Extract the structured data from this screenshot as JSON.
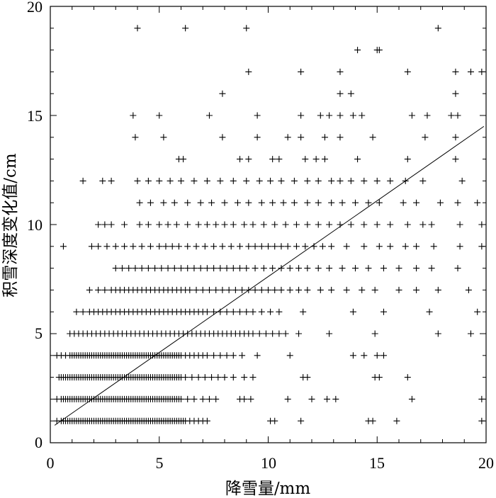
{
  "chart_data": {
    "type": "scatter",
    "title": "",
    "xlabel": "降雪量/mm",
    "ylabel": "积雪深度变化值/cm",
    "xlim": [
      0,
      20
    ],
    "ylim": [
      0,
      20
    ],
    "x_ticks": [
      "0",
      "5",
      "10",
      "15",
      "20"
    ],
    "y_ticks": [
      "0",
      "5",
      "10",
      "15",
      "20"
    ],
    "grid": false,
    "marker": "+",
    "trend_line": {
      "x": [
        0.2,
        19.9
      ],
      "y": [
        0.8,
        14.5
      ]
    },
    "points_by_y": [
      {
        "y": 1,
        "x": [
          0.3,
          0.5,
          0.6,
          0.7,
          0.8,
          0.9,
          1.0,
          1.1,
          1.2,
          1.3,
          1.4,
          1.5,
          1.6,
          1.7,
          1.8,
          1.9,
          2.0,
          2.1,
          2.2,
          2.3,
          2.4,
          2.5,
          2.6,
          2.7,
          2.8,
          2.9,
          3.0,
          3.1,
          3.2,
          3.3,
          3.4,
          3.5,
          3.6,
          3.7,
          3.8,
          3.9,
          4.0,
          4.1,
          4.2,
          4.3,
          4.4,
          4.5,
          4.6,
          4.7,
          4.8,
          4.9,
          5.0,
          5.1,
          5.2,
          5.3,
          5.4,
          5.5,
          5.6,
          5.7,
          5.8,
          5.9,
          6.0,
          6.1,
          6.2,
          6.4,
          6.6,
          6.8,
          7.0,
          7.2,
          10.1,
          10.3,
          11.5,
          14.6,
          14.8,
          15.9,
          19.8
        ]
      },
      {
        "y": 2,
        "x": [
          0.3,
          0.5,
          0.6,
          0.7,
          0.8,
          0.9,
          1.0,
          1.1,
          1.2,
          1.3,
          1.4,
          1.5,
          1.6,
          1.7,
          1.8,
          1.9,
          2.0,
          2.1,
          2.2,
          2.3,
          2.4,
          2.5,
          2.6,
          2.7,
          2.8,
          2.9,
          3.0,
          3.1,
          3.2,
          3.3,
          3.4,
          3.5,
          3.6,
          3.7,
          3.8,
          3.9,
          4.0,
          4.1,
          4.2,
          4.3,
          4.4,
          4.5,
          4.6,
          4.7,
          4.8,
          4.9,
          5.0,
          5.1,
          5.2,
          5.3,
          5.4,
          5.5,
          5.6,
          5.7,
          5.8,
          5.9,
          6.0,
          6.3,
          6.6,
          7.0,
          7.3,
          7.6,
          8.7,
          8.9,
          9.2,
          10.9,
          12.0,
          12.7,
          13.1,
          16.6,
          19.8
        ]
      },
      {
        "y": 3,
        "x": [
          0.4,
          0.5,
          0.6,
          0.7,
          0.8,
          0.9,
          1.0,
          1.1,
          1.2,
          1.3,
          1.4,
          1.5,
          1.6,
          1.7,
          1.8,
          1.9,
          2.0,
          2.1,
          2.2,
          2.3,
          2.4,
          2.5,
          2.6,
          2.7,
          2.8,
          2.9,
          3.0,
          3.1,
          3.2,
          3.3,
          3.4,
          3.5,
          3.6,
          3.7,
          3.8,
          3.9,
          4.0,
          4.1,
          4.2,
          4.3,
          4.4,
          4.5,
          4.6,
          4.7,
          4.8,
          4.9,
          5.0,
          5.1,
          5.2,
          5.3,
          5.4,
          5.5,
          5.6,
          5.7,
          5.8,
          5.9,
          6.0,
          6.2,
          6.5,
          6.8,
          7.1,
          7.4,
          7.7,
          8.0,
          8.4,
          8.9,
          9.3,
          11.6,
          11.8,
          14.9,
          15.1,
          16.4
        ]
      },
      {
        "y": 4,
        "x": [
          0.3,
          0.5,
          0.7,
          0.9,
          1.0,
          1.1,
          1.2,
          1.3,
          1.4,
          1.5,
          1.6,
          1.7,
          1.8,
          1.9,
          2.0,
          2.1,
          2.2,
          2.3,
          2.4,
          2.5,
          2.6,
          2.7,
          2.8,
          2.9,
          3.0,
          3.1,
          3.2,
          3.3,
          3.4,
          3.5,
          3.6,
          3.7,
          3.8,
          3.9,
          4.0,
          4.1,
          4.2,
          4.3,
          4.4,
          4.5,
          4.6,
          4.7,
          4.8,
          4.9,
          5.0,
          5.1,
          5.2,
          5.3,
          5.4,
          5.5,
          5.6,
          5.7,
          5.8,
          5.9,
          6.0,
          6.2,
          6.4,
          6.6,
          6.8,
          7.0,
          7.2,
          7.5,
          7.8,
          8.1,
          8.4,
          8.8,
          9.5,
          11.0,
          13.9,
          14.4,
          15.0,
          15.3
        ]
      },
      {
        "y": 5,
        "x": [
          0.9,
          1.1,
          1.3,
          1.5,
          1.7,
          1.9,
          2.1,
          2.3,
          2.5,
          2.7,
          2.9,
          3.1,
          3.3,
          3.5,
          3.7,
          3.9,
          4.1,
          4.3,
          4.5,
          4.7,
          4.9,
          5.1,
          5.3,
          5.5,
          5.7,
          5.9,
          6.1,
          6.3,
          6.5,
          6.7,
          6.9,
          7.1,
          7.3,
          7.5,
          7.7,
          7.9,
          8.1,
          8.3,
          8.5,
          8.7,
          8.9,
          9.1,
          9.3,
          9.6,
          9.9,
          10.2,
          10.5,
          10.8,
          11.4,
          12.8,
          14.9,
          17.8,
          19.3
        ]
      },
      {
        "y": 6,
        "x": [
          1.2,
          1.5,
          1.8,
          2.0,
          2.2,
          2.4,
          2.6,
          2.8,
          3.0,
          3.2,
          3.4,
          3.6,
          3.8,
          4.0,
          4.2,
          4.4,
          4.6,
          4.8,
          5.0,
          5.2,
          5.4,
          5.6,
          5.8,
          6.0,
          6.2,
          6.4,
          6.6,
          6.8,
          7.0,
          7.2,
          7.5,
          7.8,
          8.1,
          8.4,
          8.7,
          9.0,
          9.3,
          9.7,
          10.1,
          10.5,
          11.6,
          13.9,
          15.3,
          17.4,
          19.6
        ]
      },
      {
        "y": 7,
        "x": [
          1.8,
          2.2,
          2.5,
          2.8,
          3.0,
          3.2,
          3.4,
          3.6,
          3.8,
          4.0,
          4.2,
          4.4,
          4.6,
          4.8,
          5.0,
          5.2,
          5.4,
          5.6,
          5.8,
          6.0,
          6.2,
          6.4,
          6.7,
          7.0,
          7.3,
          7.6,
          7.9,
          8.2,
          8.5,
          8.8,
          9.1,
          9.4,
          9.7,
          10.0,
          10.3,
          10.6,
          11.0,
          11.4,
          11.8,
          12.4,
          12.9,
          13.6,
          14.3,
          14.9,
          16.0,
          16.8,
          17.8,
          19.2
        ]
      },
      {
        "y": 8,
        "x": [
          3.0,
          3.3,
          3.6,
          3.9,
          4.2,
          4.5,
          4.8,
          5.1,
          5.4,
          5.7,
          6.0,
          6.3,
          6.6,
          6.9,
          7.2,
          7.5,
          7.8,
          8.1,
          8.4,
          8.7,
          9.0,
          9.4,
          9.8,
          10.2,
          10.6,
          11.0,
          11.4,
          11.8,
          12.3,
          12.8,
          13.4,
          14.0,
          14.6,
          15.3,
          16.0,
          16.8,
          17.5,
          18.7
        ]
      },
      {
        "y": 9,
        "x": [
          0.6,
          1.9,
          2.2,
          2.6,
          3.0,
          3.4,
          3.8,
          4.2,
          4.6,
          5.0,
          5.3,
          5.6,
          5.9,
          6.3,
          6.7,
          7.1,
          7.5,
          7.9,
          8.3,
          8.7,
          9.1,
          9.4,
          9.7,
          10.0,
          10.3,
          10.6,
          10.9,
          11.3,
          11.7,
          12.1,
          12.5,
          12.9,
          13.6,
          14.4,
          15.1,
          15.6,
          16.3,
          16.8,
          17.6,
          18.8,
          19.8
        ]
      },
      {
        "y": 10,
        "x": [
          2.2,
          2.5,
          2.8,
          3.4,
          4.1,
          4.5,
          5.0,
          5.4,
          5.8,
          6.3,
          6.8,
          7.2,
          7.6,
          8.0,
          8.4,
          8.9,
          9.3,
          9.8,
          10.3,
          10.8,
          11.3,
          11.8,
          12.3,
          12.8,
          13.3,
          13.8,
          14.4,
          15.0,
          15.6,
          16.4,
          17.1,
          17.5,
          18.8,
          19.8
        ]
      },
      {
        "y": 11,
        "x": [
          4.1,
          4.6,
          5.2,
          5.7,
          6.3,
          6.9,
          7.4,
          8.0,
          8.6,
          9.1,
          9.7,
          10.2,
          10.7,
          11.2,
          11.8,
          12.3,
          12.9,
          13.4,
          14.0,
          14.6,
          15.1,
          16.2,
          16.8,
          17.9,
          18.7,
          19.6
        ]
      },
      {
        "y": 12,
        "x": [
          1.5,
          2.4,
          2.8,
          4.0,
          4.5,
          5.0,
          5.5,
          6.0,
          6.6,
          7.2,
          7.8,
          8.4,
          9.0,
          9.6,
          10.1,
          10.6,
          11.2,
          11.8,
          12.3,
          12.9,
          13.3,
          13.8,
          14.4,
          15.0,
          15.6,
          16.3,
          17.1,
          18.9
        ]
      },
      {
        "y": 13,
        "x": [
          5.9,
          6.1,
          8.7,
          9.1,
          10.2,
          10.5,
          11.7,
          12.2,
          12.6,
          14.1,
          16.4,
          18.6
        ]
      },
      {
        "y": 14,
        "x": [
          3.9,
          5.2,
          7.9,
          9.5,
          10.9,
          11.5,
          12.6,
          13.3,
          14.8,
          17.2,
          18.6
        ]
      },
      {
        "y": 15,
        "x": [
          3.8,
          5.0,
          7.3,
          9.5,
          11.5,
          12.4,
          12.8,
          13.3,
          13.9,
          14.3,
          16.6,
          17.3,
          18.4,
          18.7
        ]
      },
      {
        "y": 16,
        "x": [
          7.9,
          13.3,
          13.8,
          18.6
        ]
      },
      {
        "y": 17,
        "x": [
          9.1,
          11.5,
          13.3,
          16.4,
          18.6,
          19.3,
          19.8
        ]
      },
      {
        "y": 18,
        "x": [
          14.1,
          15.0,
          15.1
        ]
      },
      {
        "y": 19,
        "x": [
          4.0,
          6.2,
          9.0,
          17.8
        ]
      }
    ]
  }
}
